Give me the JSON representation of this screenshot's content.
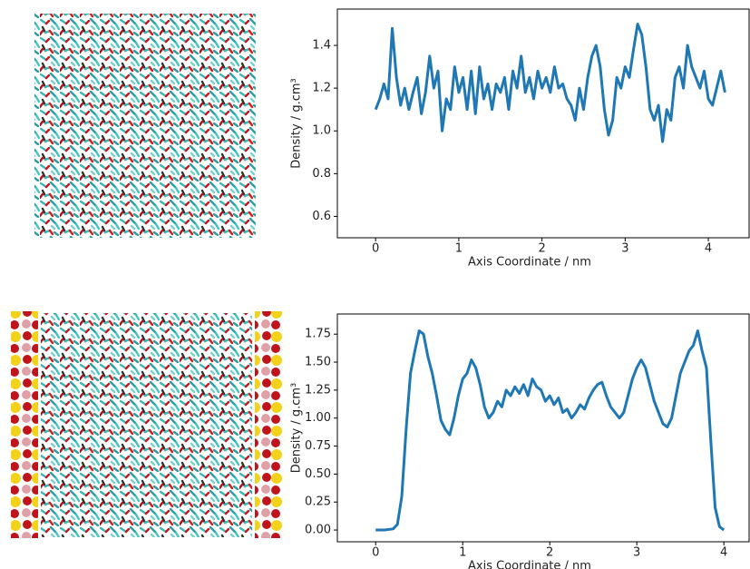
{
  "chart_data": [
    {
      "type": "line",
      "color": "#1f77b4",
      "xlabel": "Axis Coordinate / nm",
      "ylabel": "Density / g.cm³",
      "x": [
        0,
        0.05,
        0.1,
        0.15,
        0.2,
        0.25,
        0.3,
        0.35,
        0.4,
        0.45,
        0.5,
        0.55,
        0.6,
        0.65,
        0.7,
        0.75,
        0.8,
        0.85,
        0.9,
        0.95,
        1.0,
        1.05,
        1.1,
        1.15,
        1.2,
        1.25,
        1.3,
        1.35,
        1.4,
        1.45,
        1.5,
        1.55,
        1.6,
        1.65,
        1.7,
        1.75,
        1.8,
        1.85,
        1.9,
        1.95,
        2.0,
        2.05,
        2.1,
        2.15,
        2.2,
        2.25,
        2.3,
        2.35,
        2.4,
        2.45,
        2.5,
        2.55,
        2.6,
        2.65,
        2.7,
        2.75,
        2.8,
        2.85,
        2.9,
        2.95,
        3.0,
        3.05,
        3.1,
        3.15,
        3.2,
        3.25,
        3.3,
        3.35,
        3.4,
        3.45,
        3.5,
        3.55,
        3.6,
        3.65,
        3.7,
        3.75,
        3.8,
        3.85,
        3.9,
        3.95,
        4.0,
        4.05,
        4.1,
        4.15,
        4.2
      ],
      "values": [
        1.1,
        1.15,
        1.22,
        1.15,
        1.48,
        1.25,
        1.12,
        1.2,
        1.1,
        1.18,
        1.25,
        1.08,
        1.18,
        1.35,
        1.2,
        1.28,
        1.0,
        1.15,
        1.1,
        1.3,
        1.18,
        1.25,
        1.1,
        1.28,
        1.08,
        1.3,
        1.15,
        1.22,
        1.1,
        1.22,
        1.18,
        1.25,
        1.1,
        1.28,
        1.2,
        1.35,
        1.18,
        1.25,
        1.15,
        1.28,
        1.2,
        1.25,
        1.18,
        1.3,
        1.2,
        1.22,
        1.15,
        1.12,
        1.05,
        1.2,
        1.1,
        1.25,
        1.35,
        1.4,
        1.3,
        1.1,
        0.98,
        1.05,
        1.25,
        1.2,
        1.3,
        1.25,
        1.38,
        1.5,
        1.45,
        1.3,
        1.1,
        1.05,
        1.12,
        0.95,
        1.1,
        1.05,
        1.25,
        1.3,
        1.2,
        1.4,
        1.3,
        1.25,
        1.2,
        1.28,
        1.15,
        1.12,
        1.2,
        1.28,
        1.18
      ],
      "xlim": [
        -0.46,
        4.49
      ],
      "ylim": [
        0.5,
        1.57
      ],
      "xticks": [
        0,
        1,
        2,
        3,
        4
      ],
      "yticks": [
        0.6,
        0.8,
        {
          "value": 1.0,
          "label": "1.0"
        },
        1.2,
        1.4
      ]
    },
    {
      "type": "line",
      "color": "#1f77b4",
      "xlabel": "Axis Coordinate / nm",
      "ylabel": "Density / g.cm³",
      "x": [
        0,
        0.1,
        0.2,
        0.25,
        0.3,
        0.35,
        0.4,
        0.45,
        0.5,
        0.55,
        0.6,
        0.65,
        0.7,
        0.75,
        0.8,
        0.85,
        0.9,
        0.95,
        1.0,
        1.05,
        1.1,
        1.15,
        1.2,
        1.25,
        1.3,
        1.35,
        1.4,
        1.45,
        1.5,
        1.55,
        1.6,
        1.65,
        1.7,
        1.75,
        1.8,
        1.85,
        1.9,
        1.95,
        2.0,
        2.05,
        2.1,
        2.15,
        2.2,
        2.25,
        2.3,
        2.35,
        2.4,
        2.45,
        2.5,
        2.55,
        2.6,
        2.65,
        2.7,
        2.75,
        2.8,
        2.85,
        2.9,
        2.95,
        3.0,
        3.05,
        3.1,
        3.15,
        3.2,
        3.25,
        3.3,
        3.35,
        3.4,
        3.45,
        3.5,
        3.55,
        3.6,
        3.65,
        3.7,
        3.75,
        3.8,
        3.85,
        3.9,
        3.95,
        4.0
      ],
      "values": [
        0,
        0,
        0.01,
        0.05,
        0.3,
        0.9,
        1.4,
        1.6,
        1.78,
        1.75,
        1.55,
        1.4,
        1.2,
        0.98,
        0.9,
        0.85,
        1.0,
        1.2,
        1.35,
        1.4,
        1.52,
        1.45,
        1.3,
        1.1,
        1.0,
        1.05,
        1.15,
        1.1,
        1.25,
        1.2,
        1.28,
        1.22,
        1.3,
        1.2,
        1.35,
        1.28,
        1.25,
        1.15,
        1.2,
        1.12,
        1.18,
        1.05,
        1.08,
        1.0,
        1.05,
        1.12,
        1.08,
        1.18,
        1.25,
        1.3,
        1.32,
        1.2,
        1.1,
        1.05,
        1.0,
        1.05,
        1.2,
        1.35,
        1.45,
        1.52,
        1.45,
        1.3,
        1.15,
        1.05,
        0.95,
        0.92,
        1.0,
        1.2,
        1.4,
        1.5,
        1.6,
        1.65,
        1.78,
        1.6,
        1.45,
        0.8,
        0.2,
        0.03,
        0
      ],
      "xlim": [
        -0.44,
        4.29
      ],
      "ylim": [
        -0.105,
        1.93
      ],
      "xticks": [
        0,
        1,
        2,
        3,
        4
      ],
      "yticks": [
        {
          "value": 0,
          "label": "0.00"
        },
        0.25,
        {
          "value": 0.5,
          "label": "0.50"
        },
        0.75,
        {
          "value": 1.0,
          "label": "1.00"
        },
        1.25,
        {
          "value": 1.5,
          "label": "1.50"
        },
        1.75
      ]
    }
  ]
}
